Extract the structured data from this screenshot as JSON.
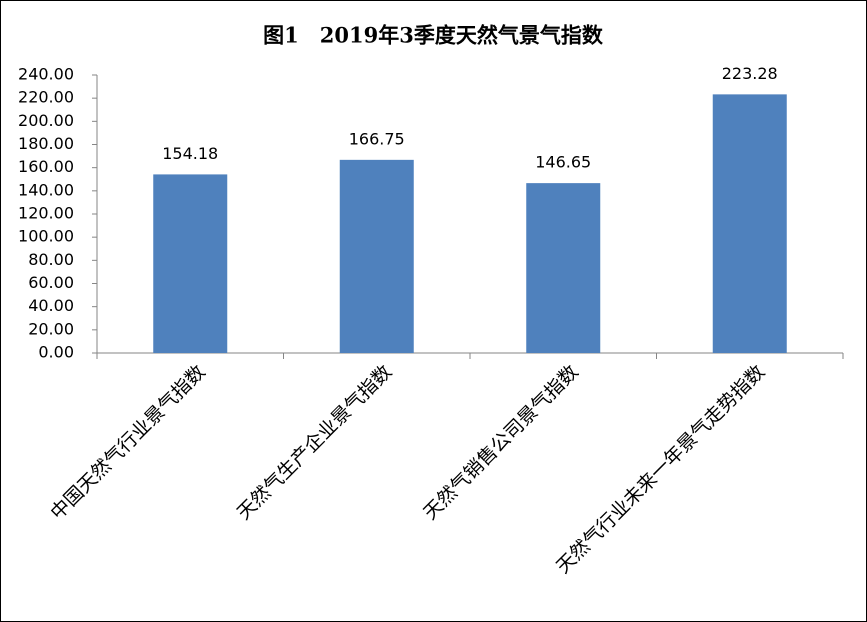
{
  "chart_data": {
    "type": "bar",
    "title": "图1　2019年3季度天然气景气指数",
    "categories": [
      "中国天然气行业景气指数",
      "天然气生产企业景气指数",
      "天然气销售公司景气指数",
      "天然气行业未来一年景气走势指数"
    ],
    "values": [
      154.18,
      166.75,
      146.65,
      223.28
    ],
    "color": "#4f81bd",
    "ylim": [
      0,
      240
    ],
    "yticks": [
      {
        "value": 0,
        "label": "0.00"
      },
      {
        "value": 20,
        "label": "20.00"
      },
      {
        "value": 40,
        "label": "40.00"
      },
      {
        "value": 60,
        "label": "60.00"
      },
      {
        "value": 80,
        "label": "80.00"
      },
      {
        "value": 100,
        "label": "100.00"
      },
      {
        "value": 120,
        "label": "120.00"
      },
      {
        "value": 140,
        "label": "140.00"
      },
      {
        "value": 160,
        "label": "160.00"
      },
      {
        "value": 180,
        "label": "180.00"
      },
      {
        "value": 200,
        "label": "200.00"
      },
      {
        "value": 220,
        "label": "220.00"
      },
      {
        "value": 240,
        "label": "240.00"
      }
    ],
    "grid": false
  }
}
